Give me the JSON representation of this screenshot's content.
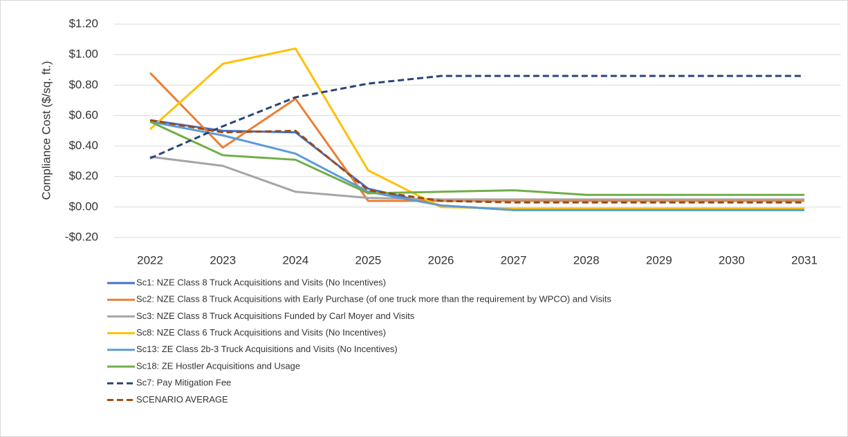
{
  "chart_data": {
    "type": "line",
    "y_label": "Compliance Cost ($/sq. ft.)",
    "categories": [
      "2022",
      "2023",
      "2024",
      "2025",
      "2026",
      "2027",
      "2028",
      "2029",
      "2030",
      "2031"
    ],
    "ylim": [
      -0.2,
      1.2
    ],
    "yticks": [
      {
        "value": -0.2,
        "label": "-$0.20"
      },
      {
        "value": 0,
        "label": "$0.00"
      },
      {
        "value": 0.2,
        "label": "$0.20"
      },
      {
        "value": 0.4,
        "label": "$0.40"
      },
      {
        "value": 0.6,
        "label": "$0.60"
      },
      {
        "value": 0.8,
        "label": "$0.80"
      },
      {
        "value": 1.0,
        "label": "$1.00"
      },
      {
        "value": 1.2,
        "label": "$1.20"
      }
    ],
    "grid": true,
    "legend": "bottom",
    "series": [
      {
        "name": "Sc1: NZE Class 8 Truck Acquisitions and Visits (No Incentives)",
        "color": "#4472c4",
        "dashed": false,
        "values": [
          0.57,
          0.5,
          0.49,
          0.12,
          0.01,
          -0.02,
          -0.02,
          -0.02,
          -0.02,
          -0.02
        ]
      },
      {
        "name": "Sc2: NZE Class 8 Truck Acquisitions with Early Purchase (of one truck more than the requirement by WPCO) and Visits",
        "color": "#ed7d31",
        "dashed": false,
        "values": [
          0.88,
          0.39,
          0.71,
          0.04,
          0.04,
          0.04,
          0.04,
          0.04,
          0.04,
          0.04
        ]
      },
      {
        "name": "Sc3: NZE Class 8 Truck Acquisitions Funded by Carl Moyer and Visits",
        "color": "#a5a5a5",
        "dashed": false,
        "values": [
          0.33,
          0.27,
          0.1,
          0.06,
          0.05,
          0.05,
          0.05,
          0.05,
          0.05,
          0.05
        ]
      },
      {
        "name": "Sc8: NZE Class 6 Truck Acquisitions and Visits (No Incentives)",
        "color": "#ffc000",
        "dashed": false,
        "values": [
          0.51,
          0.94,
          1.04,
          0.24,
          0.0,
          -0.01,
          -0.01,
          -0.01,
          -0.01,
          -0.01
        ]
      },
      {
        "name": "Sc13: ZE Class 2b-3 Truck Acquisitions and Visits (No Incentives)",
        "color": "#5b9bd5",
        "dashed": false,
        "values": [
          0.56,
          0.47,
          0.35,
          0.1,
          0.01,
          -0.02,
          -0.02,
          -0.02,
          -0.02,
          -0.02
        ]
      },
      {
        "name": "Sc18: ZE Hostler Acquisitions and Usage",
        "color": "#70ad47",
        "dashed": false,
        "values": [
          0.56,
          0.34,
          0.31,
          0.09,
          0.1,
          0.11,
          0.08,
          0.08,
          0.08,
          0.08
        ]
      },
      {
        "name": "Sc7: Pay Mitigation Fee",
        "color": "#264478",
        "dashed": true,
        "values": [
          0.32,
          0.53,
          0.72,
          0.81,
          0.86,
          0.86,
          0.86,
          0.86,
          0.86,
          0.86
        ]
      },
      {
        "name": "SCENARIO AVERAGE",
        "color": "#9e480e",
        "dashed": true,
        "values": [
          0.57,
          0.49,
          0.5,
          0.11,
          0.04,
          0.03,
          0.03,
          0.03,
          0.03,
          0.03
        ]
      }
    ]
  }
}
